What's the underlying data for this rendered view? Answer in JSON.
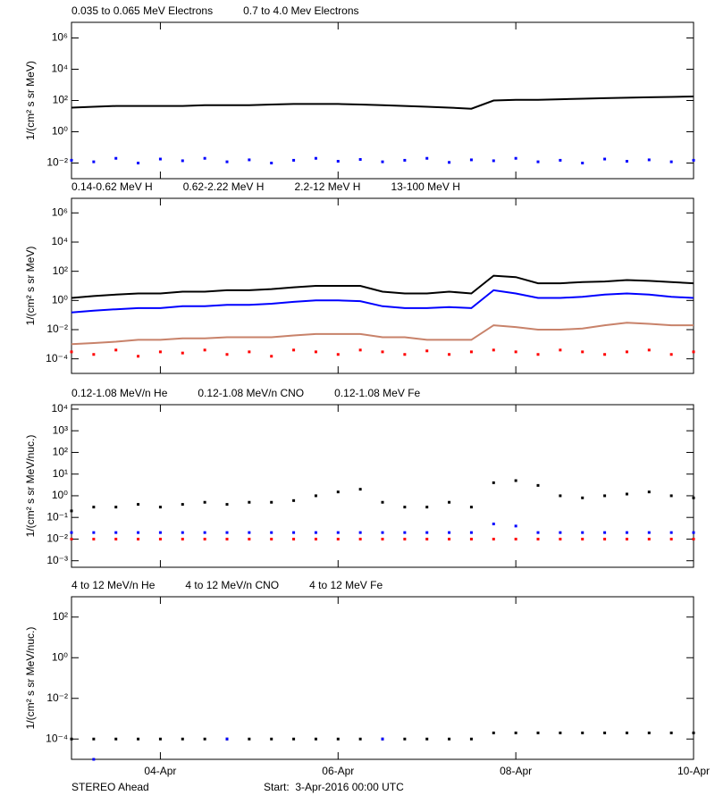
{
  "chart_data": [
    {
      "type": "line",
      "ylabel": "1/(cm² s sr MeV)",
      "ylog": true,
      "xlim": [
        0,
        7
      ],
      "xticks": [
        1,
        3,
        5,
        7
      ],
      "ylim": [
        0.001,
        10000000
      ],
      "yticks": [
        {
          "value": 0.01,
          "label": "10⁻²"
        },
        {
          "value": 1,
          "label": "10⁰"
        },
        {
          "value": 100,
          "label": "10²"
        },
        {
          "value": 10000,
          "label": "10⁴"
        },
        {
          "value": 1000000,
          "label": "10⁶"
        }
      ],
      "x": [
        0,
        0.25,
        0.5,
        0.75,
        1,
        1.25,
        1.5,
        1.75,
        2,
        2.25,
        2.5,
        2.75,
        3,
        3.25,
        3.5,
        3.75,
        4,
        4.25,
        4.5,
        4.75,
        5,
        5.25,
        5.5,
        5.75,
        6,
        6.25,
        6.5,
        6.75,
        7
      ],
      "series": [
        {
          "name": "0.035 to 0.065 MeV Electrons",
          "color": "#000000",
          "mode": "line",
          "values": [
            35,
            40,
            45,
            45,
            45,
            45,
            50,
            50,
            50,
            55,
            60,
            60,
            60,
            55,
            50,
            45,
            40,
            35,
            30,
            100,
            110,
            110,
            120,
            130,
            140,
            150,
            160,
            170,
            180
          ]
        },
        {
          "name": "0.7 to 4.0 Mev Electrons",
          "color": "#0000ff",
          "mode": "points",
          "values": [
            0.015,
            0.012,
            0.02,
            0.01,
            0.018,
            0.014,
            0.02,
            0.012,
            0.016,
            0.01,
            0.015,
            0.02,
            0.013,
            0.017,
            0.012,
            0.015,
            0.02,
            0.011,
            0.016,
            0.014,
            0.02,
            0.012,
            0.015,
            0.01,
            0.018,
            0.013,
            0.016,
            0.012,
            0.015
          ]
        }
      ]
    },
    {
      "type": "line",
      "ylabel": "1/(cm² s sr MeV)",
      "ylog": true,
      "xlim": [
        0,
        7
      ],
      "xticks": [
        1,
        3,
        5,
        7
      ],
      "ylim": [
        1e-05,
        10000000
      ],
      "yticks": [
        {
          "value": 0.0001,
          "label": "10⁻⁴"
        },
        {
          "value": 0.01,
          "label": "10⁻²"
        },
        {
          "value": 1,
          "label": "10⁰"
        },
        {
          "value": 100,
          "label": "10²"
        },
        {
          "value": 10000,
          "label": "10⁴"
        },
        {
          "value": 1000000,
          "label": "10⁶"
        }
      ],
      "x": [
        0,
        0.25,
        0.5,
        0.75,
        1,
        1.25,
        1.5,
        1.75,
        2,
        2.25,
        2.5,
        2.75,
        3,
        3.25,
        3.5,
        3.75,
        4,
        4.25,
        4.5,
        4.75,
        5,
        5.25,
        5.5,
        5.75,
        6,
        6.25,
        6.5,
        6.75,
        7
      ],
      "series": [
        {
          "name": "0.14-0.62 MeV H",
          "color": "#000000",
          "mode": "line",
          "values": [
            1.5,
            2,
            2.5,
            3,
            3,
            4,
            4,
            5,
            5,
            6,
            8,
            10,
            10,
            10,
            4,
            3,
            3,
            4,
            3,
            50,
            40,
            15,
            15,
            18,
            20,
            25,
            22,
            18,
            15
          ]
        },
        {
          "name": "0.62-2.22 MeV H",
          "color": "#0000ff",
          "mode": "line",
          "values": [
            0.15,
            0.2,
            0.25,
            0.3,
            0.3,
            0.4,
            0.4,
            0.5,
            0.5,
            0.6,
            0.8,
            1,
            1,
            0.9,
            0.4,
            0.3,
            0.3,
            0.35,
            0.3,
            5,
            3,
            1.5,
            1.5,
            1.8,
            2.5,
            3,
            2.5,
            1.8,
            1.5
          ]
        },
        {
          "name": "2.2-12 MeV H",
          "color": "#c8826a",
          "mode": "line",
          "values": [
            0.001,
            0.0012,
            0.0015,
            0.002,
            0.002,
            0.0025,
            0.0025,
            0.003,
            0.003,
            0.003,
            0.004,
            0.005,
            0.005,
            0.005,
            0.003,
            0.003,
            0.002,
            0.002,
            0.002,
            0.02,
            0.015,
            0.01,
            0.01,
            0.012,
            0.02,
            0.03,
            0.025,
            0.02,
            0.02
          ]
        },
        {
          "name": "13-100 MeV H",
          "color": "#ff0000",
          "mode": "points",
          "values": [
            0.0003,
            0.0002,
            0.0004,
            0.00015,
            0.0003,
            0.00025,
            0.0004,
            0.0002,
            0.0003,
            0.00015,
            0.0004,
            0.0003,
            0.0002,
            0.0004,
            0.0003,
            0.0002,
            0.00035,
            0.0002,
            0.0003,
            0.0004,
            0.0003,
            0.0002,
            0.0004,
            0.0003,
            0.0002,
            0.0003,
            0.0004,
            0.0002,
            0.0003
          ]
        }
      ]
    },
    {
      "type": "line",
      "ylabel": "1/(cm² s sr MeV/nuc.)",
      "ylog": true,
      "xlim": [
        0,
        7
      ],
      "xticks": [
        1,
        3,
        5,
        7
      ],
      "ylim": [
        0.0005,
        16000
      ],
      "yticks": [
        {
          "value": 0.001,
          "label": "10⁻³"
        },
        {
          "value": 0.01,
          "label": "10⁻²"
        },
        {
          "value": 0.1,
          "label": "10⁻¹"
        },
        {
          "value": 1,
          "label": "10⁰"
        },
        {
          "value": 10,
          "label": "10¹"
        },
        {
          "value": 100,
          "label": "10²"
        },
        {
          "value": 1000,
          "label": "10³"
        },
        {
          "value": 10000,
          "label": "10⁴"
        }
      ],
      "x": [
        0,
        0.25,
        0.5,
        0.75,
        1,
        1.25,
        1.5,
        1.75,
        2,
        2.25,
        2.5,
        2.75,
        3,
        3.25,
        3.5,
        3.75,
        4,
        4.25,
        4.5,
        4.75,
        5,
        5.25,
        5.5,
        5.75,
        6,
        6.25,
        6.5,
        6.75,
        7
      ],
      "series": [
        {
          "name": "0.12-1.08 MeV/n He",
          "color": "#000000",
          "mode": "points",
          "values": [
            0.2,
            0.3,
            0.3,
            0.4,
            0.3,
            0.4,
            0.5,
            0.4,
            0.5,
            0.5,
            0.6,
            1,
            1.5,
            2,
            0.5,
            0.3,
            0.3,
            0.5,
            0.3,
            4,
            5,
            3,
            1,
            0.8,
            1,
            1.2,
            1.5,
            1,
            0.8
          ]
        },
        {
          "name": "0.12-1.08 MeV/n CNO",
          "color": "#0000ff",
          "mode": "points",
          "values": [
            0.02,
            0.02,
            0.02,
            0.02,
            0.02,
            0.02,
            0.02,
            0.02,
            0.02,
            0.02,
            0.02,
            0.02,
            0.02,
            0.02,
            0.02,
            0.02,
            0.02,
            0.02,
            0.02,
            0.05,
            0.04,
            0.02,
            0.02,
            0.02,
            0.02,
            0.02,
            0.02,
            0.02,
            0.02
          ]
        },
        {
          "name": "0.12-1.08 MeV Fe",
          "color": "#ff0000",
          "mode": "points",
          "values": [
            0.01,
            0.01,
            0.01,
            0.01,
            0.01,
            0.01,
            0.01,
            0.01,
            0.01,
            0.01,
            0.01,
            0.01,
            0.01,
            0.01,
            0.01,
            0.01,
            0.01,
            0.01,
            0.01,
            0.01,
            0.01,
            0.01,
            0.01,
            0.01,
            0.01,
            0.01,
            0.01,
            0.01,
            0.01
          ]
        }
      ]
    },
    {
      "type": "line",
      "ylabel": "1/(cm² s sr MeV/nuc.)",
      "ylog": true,
      "xlim": [
        0,
        7
      ],
      "xticks": [
        {
          "value": 1,
          "label": "04-Apr"
        },
        {
          "value": 3,
          "label": "06-Apr"
        },
        {
          "value": 5,
          "label": "08-Apr"
        },
        {
          "value": 7,
          "label": "10-Apr"
        }
      ],
      "ylim": [
        1e-05,
        1000
      ],
      "yticks": [
        {
          "value": 0.0001,
          "label": "10⁻⁴"
        },
        {
          "value": 0.01,
          "label": "10⁻²"
        },
        {
          "value": 1,
          "label": "10⁰"
        },
        {
          "value": 100,
          "label": "10²"
        }
      ],
      "x": [
        0,
        0.25,
        0.5,
        0.75,
        1,
        1.25,
        1.5,
        1.75,
        2,
        2.25,
        2.5,
        2.75,
        3,
        3.25,
        3.5,
        3.75,
        4,
        4.25,
        4.5,
        4.75,
        5,
        5.25,
        5.5,
        5.75,
        6,
        6.25,
        6.5,
        6.75,
        7
      ],
      "series": [
        {
          "name": "4 to 12 MeV/n He",
          "color": "#000000",
          "mode": "points",
          "values": [
            0.0001,
            0.0001,
            0.0001,
            0.0001,
            0.0001,
            0.0001,
            0.0001,
            0.0001,
            0.0001,
            0.0001,
            0.0001,
            0.0001,
            0.0001,
            0.0001,
            0.0001,
            0.0001,
            0.0001,
            0.0001,
            0.0001,
            0.0002,
            0.0002,
            0.0002,
            0.0002,
            0.0002,
            0.0002,
            0.0002,
            0.0002,
            0.0002,
            0.0002
          ]
        },
        {
          "name": "4 to 12 MeV/n CNO",
          "color": "#0000ff",
          "mode": "points",
          "values": [
            null,
            1e-05,
            null,
            null,
            null,
            null,
            null,
            0.0001,
            null,
            null,
            null,
            null,
            null,
            null,
            0.0001,
            null,
            null,
            null,
            null,
            null,
            null,
            null,
            null,
            null,
            null,
            null,
            null,
            null,
            null
          ]
        },
        {
          "name": "4 to 12 MeV Fe",
          "color": "#ff0000",
          "mode": "points",
          "values": [
            null,
            null,
            null,
            null,
            null,
            null,
            null,
            null,
            null,
            null,
            null,
            null,
            null,
            null,
            null,
            null,
            null,
            null,
            null,
            null,
            null,
            null,
            null,
            null,
            null,
            null,
            null,
            null,
            null
          ]
        }
      ]
    }
  ],
  "footer": {
    "left": "STEREO Ahead",
    "start": "Start:  3-Apr-2016 00:00 UTC"
  }
}
